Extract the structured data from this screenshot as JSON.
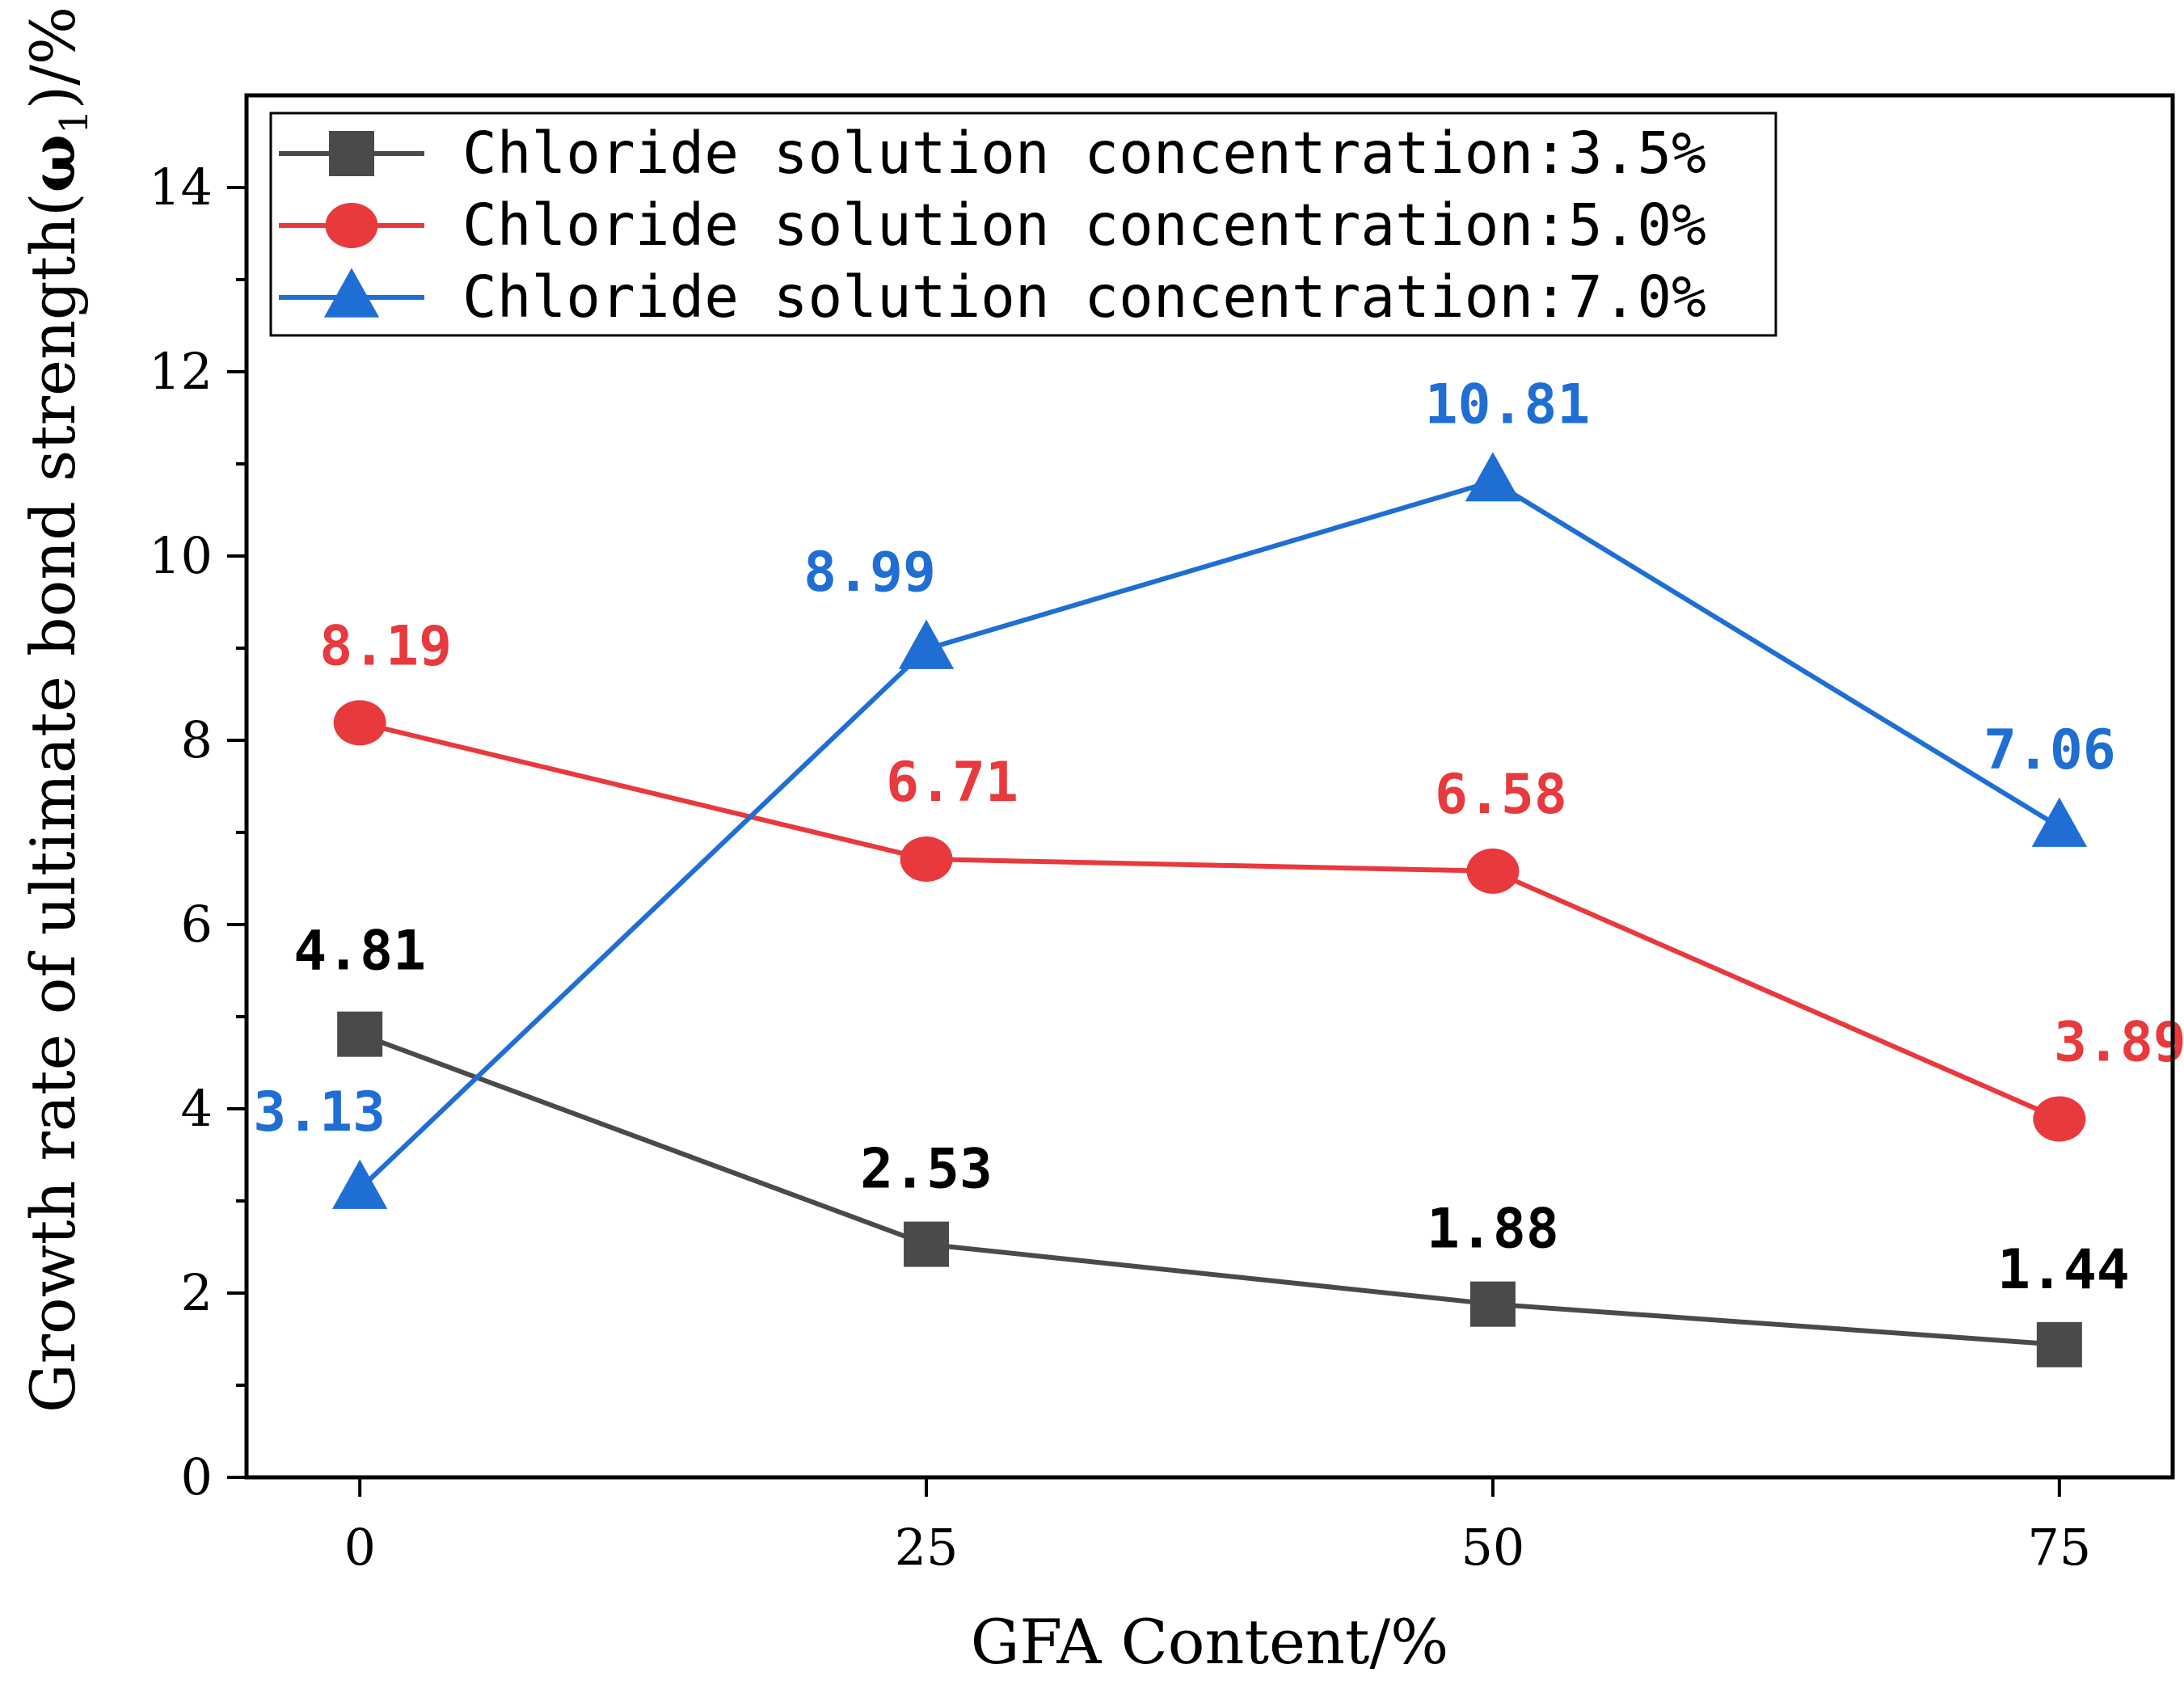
{
  "chart_data": {
    "type": "line",
    "title": "",
    "xlabel": "GFA Content/%",
    "ylabel_prefix": "Growth rate of ultimate bond strength(",
    "ylabel_symbol": "ω",
    "ylabel_subscript": "1",
    "ylabel_suffix": ")/%",
    "x": [
      0,
      25,
      50,
      75
    ],
    "x_ticks": [
      "0",
      "25",
      "50",
      "75"
    ],
    "xlim": [
      -5,
      80
    ],
    "ylim": [
      0,
      15
    ],
    "y_ticks": [
      "0",
      "2",
      "4",
      "6",
      "8",
      "10",
      "12",
      "14"
    ],
    "grid": false,
    "legend_position": "top-left",
    "series": [
      {
        "name": "Chloride solution concentration:3.5%",
        "color": "#4a4a4a",
        "label_color": "#000000",
        "marker": "square",
        "values": [
          4.81,
          2.53,
          1.88,
          1.44
        ],
        "labels": [
          "4.81",
          "2.53",
          "1.88",
          "1.44"
        ]
      },
      {
        "name": "Chloride solution concentration:5.0%",
        "color": "#e8393d",
        "label_color": "#e8393d",
        "marker": "circle",
        "values": [
          8.19,
          6.71,
          6.58,
          3.89
        ],
        "labels": [
          "8.19",
          "6.71",
          "6.58",
          "3.89"
        ]
      },
      {
        "name": "Chloride solution concentration:7.0%",
        "color": "#1f6ed4",
        "label_color": "#1f6ed4",
        "marker": "triangle",
        "values": [
          3.13,
          8.99,
          10.81,
          7.06
        ],
        "labels": [
          "3.13",
          "8.99",
          "10.81",
          "7.06"
        ]
      }
    ]
  }
}
